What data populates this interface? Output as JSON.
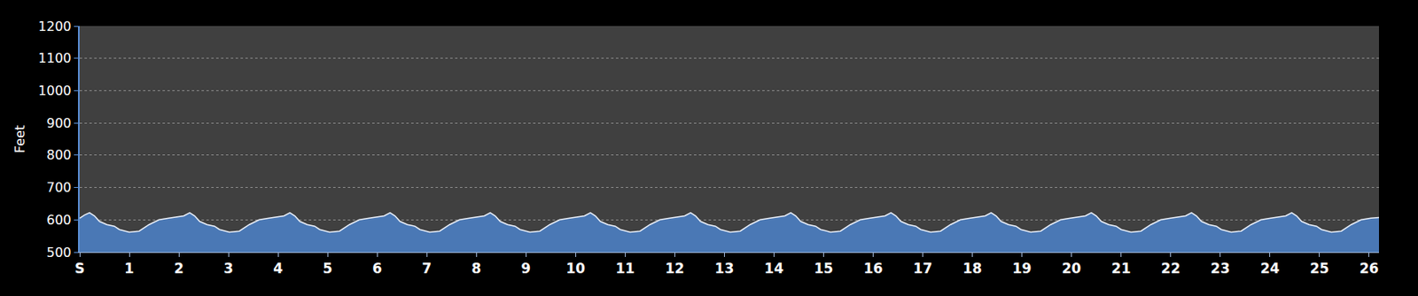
{
  "chart_data": {
    "type": "area",
    "y_label": "Feet",
    "color": "#4a78b5",
    "grid": true,
    "x": [
      0,
      0.1,
      0.2,
      0.3,
      0.4,
      0.55,
      0.7,
      0.8,
      1.0,
      1.2,
      1.4,
      1.6,
      1.8,
      1.95,
      2.1,
      2.22,
      2.32,
      2.42,
      2.57,
      2.72,
      2.82,
      3.02,
      3.22,
      3.42,
      3.62,
      3.82,
      3.97,
      4.12,
      4.24,
      4.34,
      4.44,
      4.59,
      4.74,
      4.84,
      5.04,
      5.24,
      5.44,
      5.64,
      5.84,
      5.99,
      6.14,
      6.26,
      6.36,
      6.46,
      6.61,
      6.76,
      6.86,
      7.06,
      7.26,
      7.46,
      7.66,
      7.86,
      8.01,
      8.16,
      8.28,
      8.38,
      8.48,
      8.63,
      8.78,
      8.88,
      9.08,
      9.28,
      9.48,
      9.68,
      9.88,
      10.03,
      10.18,
      10.3,
      10.4,
      10.5,
      10.65,
      10.8,
      10.9,
      11.1,
      11.3,
      11.5,
      11.7,
      11.9,
      12.05,
      12.2,
      12.32,
      12.42,
      12.52,
      12.67,
      12.82,
      12.92,
      13.12,
      13.32,
      13.52,
      13.72,
      13.92,
      14.07,
      14.22,
      14.34,
      14.44,
      14.54,
      14.69,
      14.84,
      14.94,
      15.14,
      15.34,
      15.54,
      15.74,
      15.94,
      16.09,
      16.24,
      16.36,
      16.46,
      16.56,
      16.71,
      16.86,
      16.96,
      17.16,
      17.36,
      17.56,
      17.76,
      17.96,
      18.11,
      18.26,
      18.38,
      18.48,
      18.58,
      18.73,
      18.88,
      18.98,
      19.18,
      19.38,
      19.58,
      19.78,
      19.98,
      20.13,
      20.28,
      20.4,
      20.5,
      20.6,
      20.75,
      20.9,
      21.0,
      21.2,
      21.4,
      21.6,
      21.8,
      22.0,
      22.15,
      22.3,
      22.42,
      22.52,
      22.62,
      22.77,
      22.92,
      23.02,
      23.22,
      23.42,
      23.62,
      23.82,
      24.02,
      24.17,
      24.32,
      24.44,
      24.54,
      24.64,
      24.79,
      24.94,
      25.04,
      25.24,
      25.44,
      25.64,
      25.84,
      26.04,
      26.2
    ],
    "values": [
      605,
      615,
      622,
      612,
      595,
      585,
      580,
      570,
      562,
      565,
      585,
      600,
      605,
      608,
      612,
      622,
      612,
      595,
      585,
      580,
      570,
      562,
      565,
      585,
      600,
      605,
      608,
      612,
      622,
      612,
      595,
      585,
      580,
      570,
      562,
      565,
      585,
      600,
      605,
      608,
      612,
      622,
      612,
      595,
      585,
      580,
      570,
      562,
      565,
      585,
      600,
      605,
      608,
      612,
      622,
      612,
      595,
      585,
      580,
      570,
      562,
      565,
      585,
      600,
      605,
      608,
      612,
      622,
      612,
      595,
      585,
      580,
      570,
      562,
      565,
      585,
      600,
      605,
      608,
      612,
      622,
      612,
      595,
      585,
      580,
      570,
      562,
      565,
      585,
      600,
      605,
      608,
      612,
      622,
      612,
      595,
      585,
      580,
      570,
      562,
      565,
      585,
      600,
      605,
      608,
      612,
      622,
      612,
      595,
      585,
      580,
      570,
      562,
      565,
      585,
      600,
      605,
      608,
      612,
      622,
      612,
      595,
      585,
      580,
      570,
      562,
      565,
      585,
      600,
      605,
      608,
      612,
      622,
      612,
      595,
      585,
      580,
      570,
      562,
      565,
      585,
      600,
      605,
      608,
      612,
      622,
      612,
      595,
      585,
      580,
      570,
      562,
      565,
      585,
      600,
      605,
      608,
      612,
      622,
      612,
      595,
      585,
      580,
      570,
      562,
      565,
      585,
      600,
      605,
      607
    ],
    "xlim": [
      0,
      26.2
    ],
    "xticks": [
      {
        "value": 0,
        "label": "S"
      },
      1,
      2,
      3,
      4,
      5,
      6,
      7,
      8,
      9,
      10,
      11,
      12,
      13,
      14,
      15,
      16,
      17,
      18,
      19,
      20,
      21,
      22,
      23,
      24,
      25,
      26
    ],
    "ylim": [
      500,
      1200
    ],
    "yticks": [
      500,
      600,
      700,
      800,
      900,
      1000,
      1100,
      1200
    ]
  }
}
